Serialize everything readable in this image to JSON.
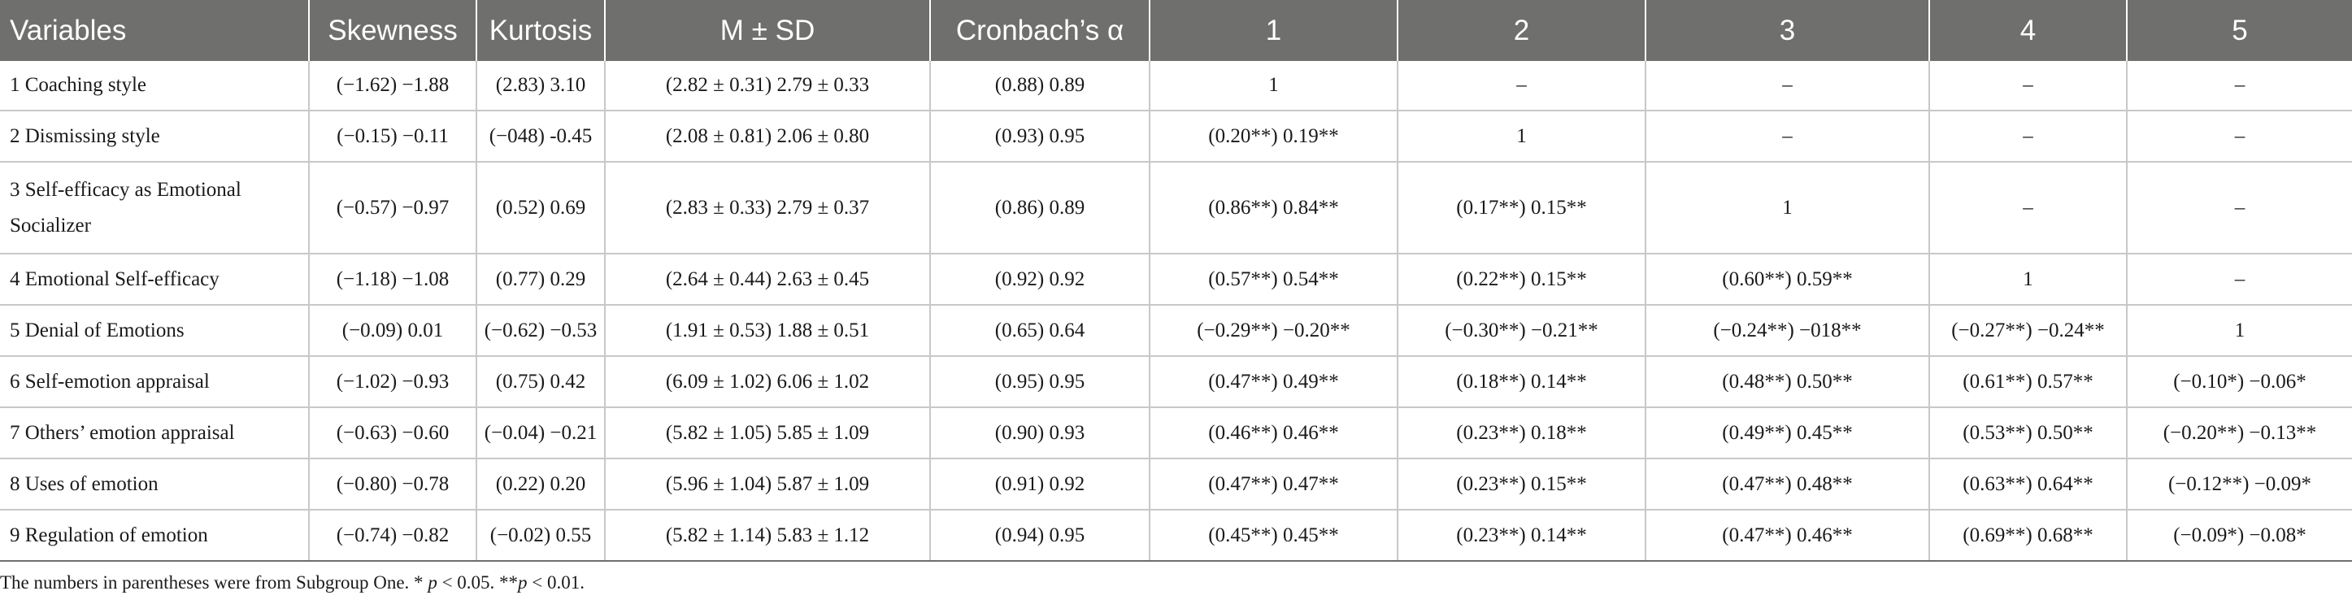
{
  "table": {
    "headers": [
      "Variables",
      "Skewness",
      "Kurtosis",
      "M ± SD",
      "Cronbach’s α",
      "1",
      "2",
      "3",
      "4",
      "5"
    ],
    "rows": [
      [
        "1 Coaching style",
        "(−1.62) −1.88",
        "(2.83) 3.10",
        "(2.82 ± 0.31) 2.79 ± 0.33",
        "(0.88) 0.89",
        "1",
        "–",
        "–",
        "–",
        "–"
      ],
      [
        "2 Dismissing style",
        "(−0.15) −0.11",
        "(−048) -0.45",
        "(2.08 ± 0.81) 2.06 ± 0.80",
        "(0.93) 0.95",
        "(0.20**) 0.19**",
        "1",
        "–",
        "–",
        "–"
      ],
      [
        "3 Self-efficacy as Emotional Socializer",
        "(−0.57) −0.97",
        "(0.52) 0.69",
        "(2.83 ± 0.33) 2.79 ± 0.37",
        "(0.86) 0.89",
        "(0.86**) 0.84**",
        "(0.17**) 0.15**",
        "1",
        "–",
        "–"
      ],
      [
        "4 Emotional Self-efficacy",
        "(−1.18) −1.08",
        "(0.77) 0.29",
        "(2.64 ± 0.44) 2.63 ± 0.45",
        "(0.92) 0.92",
        "(0.57**) 0.54**",
        "(0.22**) 0.15**",
        "(0.60**) 0.59**",
        "1",
        "–"
      ],
      [
        "5 Denial of Emotions",
        "(−0.09) 0.01",
        "(−0.62) −0.53",
        "(1.91 ± 0.53) 1.88 ± 0.51",
        "(0.65) 0.64",
        "(−0.29**) −0.20**",
        "(−0.30**) −0.21**",
        "(−0.24**) −018**",
        "(−0.27**) −0.24**",
        "1"
      ],
      [
        "6 Self-emotion appraisal",
        "(−1.02) −0.93",
        "(0.75) 0.42",
        "(6.09 ± 1.02) 6.06 ± 1.02",
        "(0.95) 0.95",
        "(0.47**) 0.49**",
        "(0.18**) 0.14**",
        "(0.48**) 0.50**",
        "(0.61**) 0.57**",
        "(−0.10*) −0.06*"
      ],
      [
        "7 Others’ emotion appraisal",
        "(−0.63) −0.60",
        "(−0.04) −0.21",
        "(5.82 ± 1.05) 5.85 ± 1.09",
        "(0.90) 0.93",
        "(0.46**) 0.46**",
        "(0.23**) 0.18**",
        "(0.49**) 0.45**",
        "(0.53**) 0.50**",
        "(−0.20**) −0.13**"
      ],
      [
        "8 Uses of emotion",
        "(−0.80) −0.78",
        "(0.22) 0.20",
        "(5.96 ± 1.04) 5.87 ± 1.09",
        "(0.91) 0.92",
        "(0.47**) 0.47**",
        "(0.23**) 0.15**",
        "(0.47**) 0.48**",
        "(0.63**) 0.64**",
        "(−0.12**) −0.09*"
      ],
      [
        "9 Regulation of emotion",
        "(−0.74) −0.82",
        "(−0.02) 0.55",
        "(5.82 ± 1.14) 5.83 ± 1.12",
        "(0.94) 0.95",
        "(0.45**) 0.45**",
        "(0.23**) 0.14**",
        "(0.47**) 0.46**",
        "(0.69**) 0.68**",
        "(−0.09*) −0.08*"
      ]
    ]
  },
  "footnote": {
    "text": "The numbers in parentheses were from Subgroup One. * ",
    "p1": "p",
    "mid": " < 0.05. **",
    "p2": "p",
    "end": " < 0.01."
  }
}
